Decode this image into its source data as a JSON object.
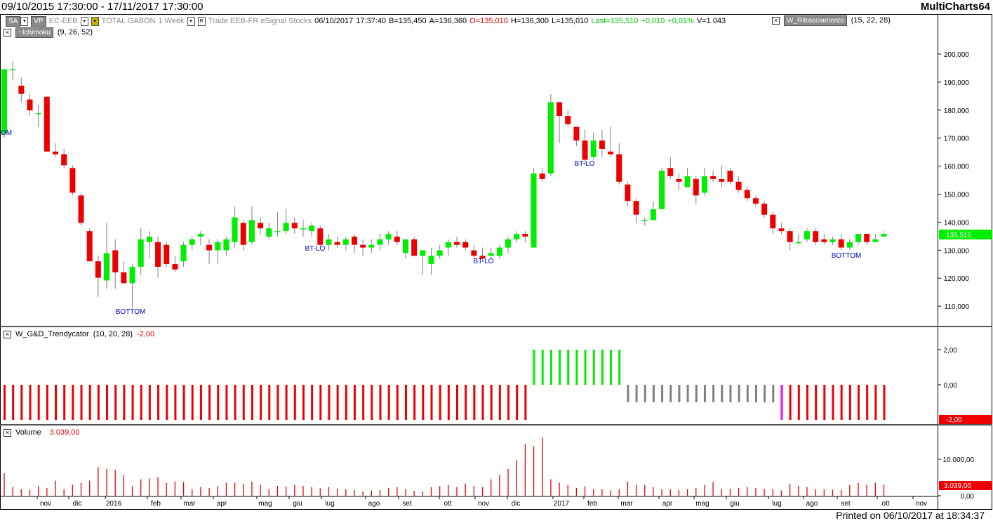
{
  "title_bar": {
    "date_range": "09/10/2015 17:30:00 - 17/11/2017 17:30:00",
    "app_name": "MultiCharts64"
  },
  "toolbar": {
    "sa_label": "SA",
    "vp_label": "VP",
    "symbol": "EC-EEB",
    "instrument_name": "TOTAL GABON",
    "resolution": "1 Week",
    "r_label": "R",
    "trade_info": "Trade  EEB-FR  eSignal  Stocks",
    "date": "06/10/2017",
    "time": "17:37:40",
    "bid": "B=135,450",
    "ask": "A=136,360",
    "open": "O=135,010",
    "high": "H=136,300",
    "low": "L=135,010",
    "last": "Last=135,510",
    "change": "+0,010",
    "change_pct": "+0,01%",
    "volume": "V=1.043",
    "study_right_label": "W_Ritracciamento",
    "study_right_params": "(15,  22,  28)",
    "ichimoku_label": "~Ichimoku",
    "ichimoku_params": "(9,  26,  52)"
  },
  "trendy_panel": {
    "label": "W_G&D_Trendycator",
    "params": "(10,  20,  28)",
    "value": "-2,00",
    "axis_ticks": [
      "2,00",
      "0,00"
    ],
    "current_value_tag": "-2,00"
  },
  "volume_panel": {
    "label": "Volume",
    "value": "3.039,00",
    "axis_ticks": [
      "10.000,00",
      "0,00"
    ],
    "current_value_tag": "3.039,00"
  },
  "price_axis": {
    "ticks": [
      "200,000",
      "190,000",
      "180,000",
      "170,000",
      "160,000",
      "150,000",
      "140,000",
      "130,000",
      "120,000",
      "110,000"
    ],
    "current_price_tag": "135,510"
  },
  "time_axis": {
    "labels": [
      "nov",
      "dic",
      "2016",
      "feb",
      "mar",
      "apr",
      "mag",
      "giu",
      "lug",
      "ago",
      "set",
      "ott",
      "nov",
      "dic",
      "2017",
      "feb",
      "mar",
      "apr",
      "mag",
      "giu",
      "lug",
      "ago",
      "set",
      "ott",
      "nov"
    ]
  },
  "annotations": [
    "OM",
    "BOTTOM",
    "BT-LO",
    "BT-LO",
    "BT-LO",
    "BOTTOM"
  ],
  "footer": {
    "printed": "Printed on 06/10/2017 at 18:34:37"
  },
  "colors": {
    "bull": "#00ee00",
    "bear": "#ee0000",
    "neutral": "#808080",
    "magenta": "#ff00ff",
    "annotation": "#0000cc"
  },
  "chart_data": [
    {
      "type": "candlestick",
      "title": "TOTAL GABON 1 Week",
      "ylim": [
        103000,
        211000
      ],
      "candles": [
        {
          "x": "0",
          "o": 172.5,
          "h": 196,
          "l": 171,
          "c": 196
        },
        {
          "x": "1",
          "o": 196,
          "h": 199,
          "l": 192,
          "c": 196
        },
        {
          "x": "2",
          "o": 190,
          "h": 193,
          "l": 184,
          "c": 187
        },
        {
          "x": "3",
          "o": 185,
          "h": 187,
          "l": 179,
          "c": 181
        },
        {
          "x": "4",
          "o": 180,
          "h": 183,
          "l": 175,
          "c": 180
        },
        {
          "x": "5",
          "o": 186,
          "h": 186,
          "l": 166,
          "c": 166
        },
        {
          "x": "6",
          "o": 166,
          "h": 169,
          "l": 164,
          "c": 165
        },
        {
          "x": "7",
          "o": 165,
          "h": 167,
          "l": 160,
          "c": 161
        },
        {
          "x": "8",
          "o": 160,
          "h": 161,
          "l": 150,
          "c": 151
        },
        {
          "x": "9",
          "o": 150,
          "h": 151,
          "l": 139,
          "c": 140
        },
        {
          "x": "10",
          "o": 137,
          "h": 138,
          "l": 126,
          "c": 126
        },
        {
          "x": "11",
          "o": 126,
          "h": 128,
          "l": 113,
          "c": 120
        },
        {
          "x": "12",
          "o": 119,
          "h": 140,
          "l": 116,
          "c": 129
        },
        {
          "x": "13",
          "o": 130,
          "h": 134,
          "l": 116,
          "c": 122
        },
        {
          "x": "14",
          "o": 122,
          "h": 126,
          "l": 118,
          "c": 118
        },
        {
          "x": "15",
          "o": 118,
          "h": 125,
          "l": 109,
          "c": 124
        },
        {
          "x": "16",
          "o": 124,
          "h": 138,
          "l": 121,
          "c": 134
        },
        {
          "x": "17",
          "o": 133,
          "h": 137,
          "l": 127,
          "c": 135
        },
        {
          "x": "18",
          "o": 133,
          "h": 135,
          "l": 120,
          "c": 124
        },
        {
          "x": "19",
          "o": 132,
          "h": 133,
          "l": 124,
          "c": 125
        },
        {
          "x": "20",
          "o": 125,
          "h": 128,
          "l": 122,
          "c": 123
        },
        {
          "x": "21",
          "o": 126,
          "h": 133,
          "l": 124,
          "c": 132
        },
        {
          "x": "22",
          "o": 132,
          "h": 135,
          "l": 130,
          "c": 134
        },
        {
          "x": "23",
          "o": 135,
          "h": 137,
          "l": 132,
          "c": 136
        },
        {
          "x": "24",
          "o": 132,
          "h": 134,
          "l": 125,
          "c": 130
        },
        {
          "x": "25",
          "o": 130,
          "h": 134,
          "l": 125,
          "c": 133
        },
        {
          "x": "26",
          "o": 130,
          "h": 135,
          "l": 128,
          "c": 134
        },
        {
          "x": "27",
          "o": 133,
          "h": 146,
          "l": 131,
          "c": 142
        },
        {
          "x": "28",
          "o": 140,
          "h": 141,
          "l": 130,
          "c": 132
        },
        {
          "x": "29",
          "o": 133,
          "h": 146,
          "l": 132,
          "c": 141
        },
        {
          "x": "30",
          "o": 140,
          "h": 142,
          "l": 136,
          "c": 138
        },
        {
          "x": "31",
          "o": 135,
          "h": 140,
          "l": 134,
          "c": 138
        },
        {
          "x": "32",
          "o": 137,
          "h": 144,
          "l": 135,
          "c": 137
        },
        {
          "x": "33",
          "o": 137,
          "h": 145,
          "l": 136,
          "c": 140
        },
        {
          "x": "34",
          "o": 140,
          "h": 142,
          "l": 136,
          "c": 138
        },
        {
          "x": "35",
          "o": 138,
          "h": 141,
          "l": 135,
          "c": 138
        },
        {
          "x": "36",
          "o": 137,
          "h": 140,
          "l": 135,
          "c": 139
        },
        {
          "x": "37",
          "o": 138,
          "h": 139,
          "l": 131,
          "c": 132
        },
        {
          "x": "38",
          "o": 132,
          "h": 136,
          "l": 130,
          "c": 134
        },
        {
          "x": "39",
          "o": 133,
          "h": 135,
          "l": 131,
          "c": 132
        },
        {
          "x": "40",
          "o": 132,
          "h": 135,
          "l": 130,
          "c": 134
        },
        {
          "x": "41",
          "o": 135,
          "h": 136,
          "l": 129,
          "c": 132
        },
        {
          "x": "42",
          "o": 132,
          "h": 134,
          "l": 128,
          "c": 131
        },
        {
          "x": "43",
          "o": 131,
          "h": 134,
          "l": 129,
          "c": 132
        },
        {
          "x": "44",
          "o": 132,
          "h": 136,
          "l": 130,
          "c": 134
        },
        {
          "x": "45",
          "o": 134,
          "h": 137,
          "l": 132,
          "c": 136
        },
        {
          "x": "46",
          "o": 135,
          "h": 137,
          "l": 132,
          "c": 133
        },
        {
          "x": "47",
          "o": 129,
          "h": 134,
          "l": 127,
          "c": 134
        },
        {
          "x": "48",
          "o": 134,
          "h": 135,
          "l": 128,
          "c": 128
        },
        {
          "x": "49",
          "o": 128,
          "h": 129,
          "l": 121,
          "c": 130
        },
        {
          "x": "50",
          "o": 125,
          "h": 131,
          "l": 121,
          "c": 128
        },
        {
          "x": "51",
          "o": 128,
          "h": 132,
          "l": 127,
          "c": 130
        },
        {
          "x": "52",
          "o": 131,
          "h": 134,
          "l": 128,
          "c": 133
        },
        {
          "x": "53",
          "o": 133,
          "h": 135,
          "l": 131,
          "c": 132
        },
        {
          "x": "54",
          "o": 133,
          "h": 134,
          "l": 130,
          "c": 131
        },
        {
          "x": "55",
          "o": 130,
          "h": 132,
          "l": 127,
          "c": 128
        },
        {
          "x": "56",
          "o": 128,
          "h": 131,
          "l": 126,
          "c": 127
        },
        {
          "x": "57",
          "o": 128,
          "h": 131,
          "l": 127,
          "c": 129
        },
        {
          "x": "58",
          "o": 128,
          "h": 132,
          "l": 127,
          "c": 131
        },
        {
          "x": "59",
          "o": 131,
          "h": 135,
          "l": 129,
          "c": 134
        },
        {
          "x": "60",
          "o": 134,
          "h": 137,
          "l": 133,
          "c": 136
        },
        {
          "x": "61",
          "o": 136,
          "h": 137,
          "l": 133,
          "c": 135
        },
        {
          "x": "62",
          "o": 131,
          "h": 160,
          "l": 131,
          "c": 158
        },
        {
          "x": "63",
          "o": 158,
          "h": 160,
          "l": 155,
          "c": 156
        },
        {
          "x": "64",
          "o": 158,
          "h": 187,
          "l": 157,
          "c": 184
        },
        {
          "x": "65",
          "o": 184,
          "h": 184,
          "l": 169,
          "c": 179
        },
        {
          "x": "66",
          "o": 179,
          "h": 181,
          "l": 175,
          "c": 176
        },
        {
          "x": "67",
          "o": 175,
          "h": 175,
          "l": 168,
          "c": 170
        },
        {
          "x": "68",
          "o": 170,
          "h": 174,
          "l": 161,
          "c": 163
        },
        {
          "x": "69",
          "o": 164,
          "h": 173,
          "l": 163,
          "c": 170
        },
        {
          "x": "70",
          "o": 170,
          "h": 174,
          "l": 164,
          "c": 167
        },
        {
          "x": "71",
          "o": 166,
          "h": 175,
          "l": 164,
          "c": 165
        },
        {
          "x": "72",
          "o": 165,
          "h": 169,
          "l": 154,
          "c": 155
        },
        {
          "x": "73",
          "o": 154,
          "h": 155,
          "l": 146,
          "c": 148
        },
        {
          "x": "74",
          "o": 148,
          "h": 149,
          "l": 140,
          "c": 143
        },
        {
          "x": "75",
          "o": 141,
          "h": 142,
          "l": 139,
          "c": 141
        },
        {
          "x": "76",
          "o": 141,
          "h": 148,
          "l": 141,
          "c": 145
        },
        {
          "x": "77",
          "o": 145,
          "h": 160,
          "l": 145,
          "c": 159
        },
        {
          "x": "78",
          "o": 160,
          "h": 164,
          "l": 156,
          "c": 157
        },
        {
          "x": "79",
          "o": 156,
          "h": 158,
          "l": 152,
          "c": 155
        },
        {
          "x": "80",
          "o": 153,
          "h": 160,
          "l": 153,
          "c": 157
        },
        {
          "x": "81",
          "o": 156,
          "h": 157,
          "l": 147,
          "c": 150
        },
        {
          "x": "82",
          "o": 151,
          "h": 160,
          "l": 150,
          "c": 157
        },
        {
          "x": "83",
          "o": 157,
          "h": 159,
          "l": 155,
          "c": 156
        },
        {
          "x": "84",
          "o": 156,
          "h": 161,
          "l": 153,
          "c": 155
        },
        {
          "x": "85",
          "o": 159,
          "h": 160,
          "l": 154,
          "c": 155
        },
        {
          "x": "86",
          "o": 155,
          "h": 157,
          "l": 151,
          "c": 152
        },
        {
          "x": "87",
          "o": 152,
          "h": 153,
          "l": 148,
          "c": 149
        },
        {
          "x": "88",
          "o": 149,
          "h": 150,
          "l": 146,
          "c": 147
        },
        {
          "x": "89",
          "o": 147,
          "h": 148,
          "l": 142,
          "c": 143
        },
        {
          "x": "90",
          "o": 143,
          "h": 144,
          "l": 136,
          "c": 138
        },
        {
          "x": "91",
          "o": 138,
          "h": 140,
          "l": 136,
          "c": 137
        },
        {
          "x": "92",
          "o": 137,
          "h": 138,
          "l": 130,
          "c": 133
        },
        {
          "x": "93",
          "o": 133,
          "h": 136,
          "l": 132,
          "c": 133
        },
        {
          "x": "94",
          "o": 134,
          "h": 138,
          "l": 133,
          "c": 137
        },
        {
          "x": "95",
          "o": 137,
          "h": 138,
          "l": 132,
          "c": 133
        },
        {
          "x": "96",
          "o": 134,
          "h": 136,
          "l": 132,
          "c": 133
        },
        {
          "x": "97",
          "o": 133,
          "h": 135,
          "l": 132,
          "c": 134
        },
        {
          "x": "98",
          "o": 134,
          "h": 136,
          "l": 130,
          "c": 131
        },
        {
          "x": "99",
          "o": 131,
          "h": 134,
          "l": 130,
          "c": 133
        },
        {
          "x": "100",
          "o": 133,
          "h": 136,
          "l": 132,
          "c": 136
        },
        {
          "x": "101",
          "o": 136,
          "h": 136,
          "l": 132,
          "c": 133
        },
        {
          "x": "102",
          "o": 133,
          "h": 136,
          "l": 133,
          "c": 134
        },
        {
          "x": "103",
          "o": 135,
          "h": 137,
          "l": 135,
          "c": 136
        }
      ]
    },
    {
      "type": "bar",
      "title": "W_G&D_Trendycator",
      "ylim": [
        -2,
        2
      ],
      "values": [
        -2,
        -2,
        -2,
        -2,
        -2,
        -2,
        -2,
        -2,
        -2,
        -2,
        -2,
        -2,
        -2,
        -2,
        -2,
        -2,
        -2,
        -2,
        -2,
        -2,
        -2,
        -2,
        -2,
        -2,
        -2,
        -2,
        -2,
        -2,
        -2,
        -2,
        -2,
        -2,
        -2,
        -2,
        -2,
        -2,
        -2,
        -2,
        -2,
        -2,
        -2,
        -2,
        -2,
        -2,
        -2,
        -2,
        -2,
        -2,
        -2,
        -2,
        -2,
        -2,
        -2,
        -2,
        -2,
        -2,
        -2,
        -2,
        -2,
        -2,
        -2,
        -2,
        2,
        2,
        2,
        2,
        2,
        2,
        2,
        2,
        2,
        2,
        2,
        -1,
        -1,
        -1,
        -1,
        -1,
        -1,
        -1,
        -1,
        -1,
        -1,
        -1,
        -1,
        -1,
        -1,
        -1,
        -1,
        -1,
        -1,
        -2,
        -2,
        -2,
        -2,
        -2,
        -2,
        -2,
        -2,
        -2,
        -2,
        -2,
        -2,
        -2
      ],
      "state": [
        "red",
        "green",
        "gray",
        "magenta"
      ]
    },
    {
      "type": "bar",
      "title": "Volume",
      "ylim": [
        0,
        14000
      ],
      "values": [
        5200,
        2000,
        1500,
        1400,
        2200,
        1800,
        3500,
        1500,
        2500,
        3000,
        3500,
        6600,
        6200,
        6000,
        4800,
        2200,
        3800,
        4000,
        4300,
        3000,
        3300,
        3200,
        1500,
        2000,
        1800,
        2200,
        3000,
        3000,
        2800,
        3300,
        2500,
        1500,
        2300,
        2100,
        2500,
        2300,
        2000,
        1700,
        2000,
        1600,
        1500,
        1300,
        1000,
        1200,
        1300,
        1800,
        2000,
        1500,
        1100,
        1000,
        2000,
        2200,
        2500,
        2000,
        2800,
        2300,
        2000,
        3800,
        4800,
        6200,
        8300,
        12000,
        11500,
        13500,
        3800,
        3000,
        2500,
        1800,
        2200,
        1500,
        1500,
        1200,
        1500,
        3300,
        2500,
        2500,
        2000,
        1500,
        1500,
        1300,
        1500,
        1800,
        2500,
        3200,
        1500,
        1600,
        1800,
        2000,
        1800,
        1500,
        1600,
        1200,
        2800,
        2300,
        2000,
        1500,
        1500,
        1400,
        1300,
        2500,
        3000,
        2500,
        3000,
        2500
      ]
    }
  ]
}
